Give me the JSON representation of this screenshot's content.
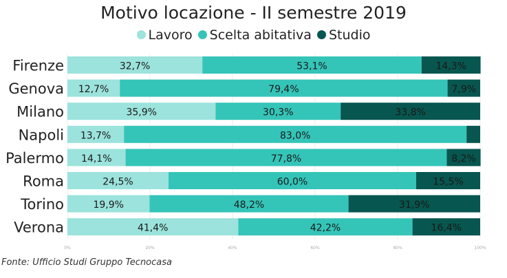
{
  "chart_data": {
    "type": "bar",
    "orientation": "horizontal",
    "stacked": true,
    "title": "Motivo locazione - II semestre 2019",
    "categories": [
      "Firenze",
      "Genova",
      "Milano",
      "Napoli",
      "Palermo",
      "Roma",
      "Torino",
      "Verona"
    ],
    "series": [
      {
        "name": "Lavoro",
        "color": "#9be3dc",
        "values": [
          32.7,
          12.7,
          35.9,
          13.7,
          14.1,
          24.5,
          19.9,
          41.4
        ],
        "labels": [
          "32,7%",
          "12,7%",
          "35,9%",
          "13,7%",
          "14,1%",
          "24,5%",
          "19,9%",
          "41,4%"
        ]
      },
      {
        "name": "Scelta abitativa",
        "color": "#35c4b8",
        "values": [
          53.1,
          79.4,
          30.3,
          83.0,
          77.8,
          60.0,
          48.2,
          42.2
        ],
        "labels": [
          "53,1%",
          "79,4%",
          "30,3%",
          "83,0%",
          "77,8%",
          "60,0%",
          "48,2%",
          "42,2%"
        ]
      },
      {
        "name": "Studio",
        "color": "#07564f",
        "values": [
          14.3,
          7.9,
          33.8,
          3.3,
          8.2,
          15.5,
          31.9,
          16.4
        ],
        "labels": [
          "14,3%",
          "7,9%",
          "33,8%",
          "",
          "8,2%",
          "15,5%",
          "31,9%",
          "16,4%"
        ]
      }
    ],
    "xlim": [
      0,
      100
    ],
    "xticks": [
      "0%",
      "20%",
      "40%",
      "60%",
      "80%",
      "100%"
    ],
    "legend": "top",
    "grid": true
  },
  "source": "Fonte: Ufficio Studi Gruppo Tecnocasa"
}
